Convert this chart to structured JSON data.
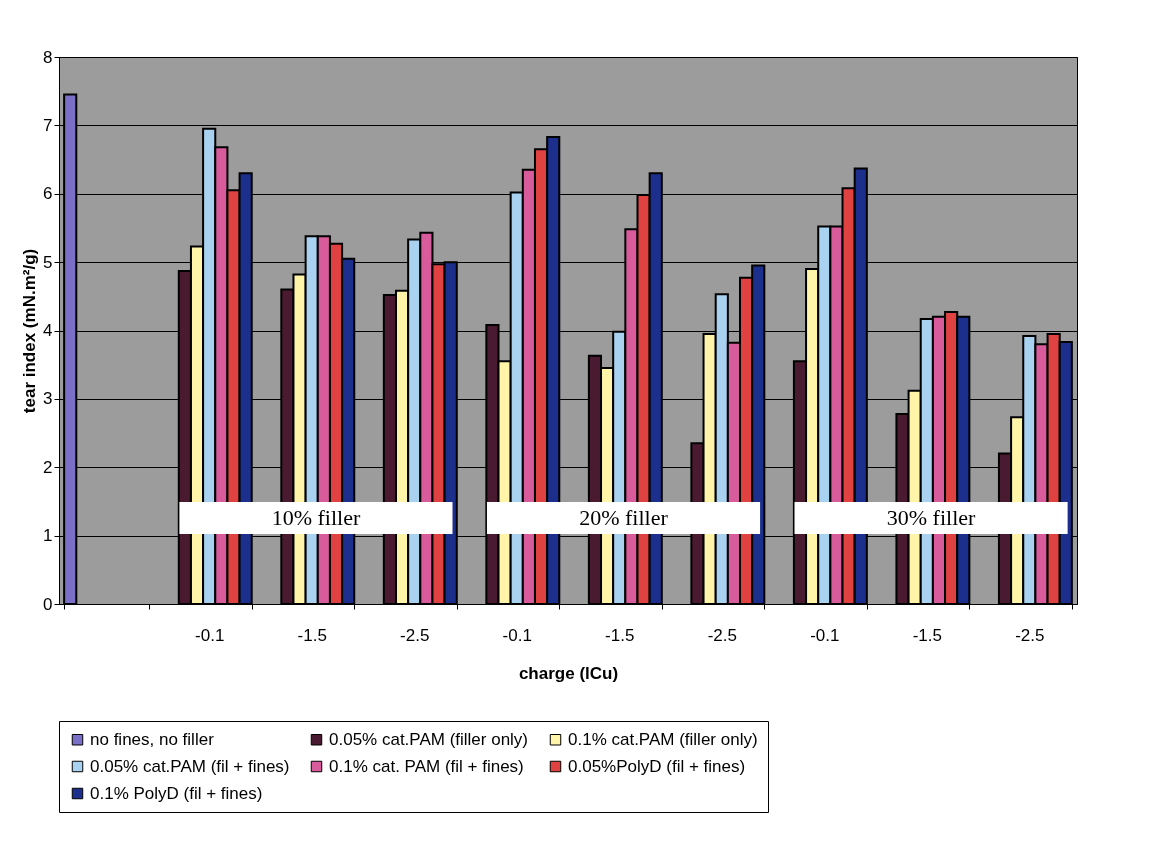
{
  "chart_data": {
    "type": "bar",
    "xlabel": "charge (lCu)",
    "ylabel": "tear index (mN.m²/g)",
    "categories": [
      null,
      "-0.1",
      "-1.5",
      "-2.5",
      "-0.1",
      "-1.5",
      "-2.5",
      "-0.1",
      "-1.5",
      "-2.5"
    ],
    "series": [
      {
        "name": "no fines, no filler",
        "color": "#7b70c8",
        "values": [
          7.45,
          null,
          null,
          null,
          null,
          null,
          null,
          null,
          null,
          null
        ]
      },
      {
        "name": "0.05% cat.PAM (filler only)",
        "color": "#4a1a30",
        "values": [
          null,
          4.87,
          4.6,
          4.52,
          4.08,
          3.63,
          2.35,
          3.55,
          2.78,
          2.2
        ]
      },
      {
        "name": "0.1% cat.PAM (filler only)",
        "color": "#fff4a8",
        "values": [
          null,
          5.23,
          4.82,
          4.58,
          3.55,
          3.45,
          3.95,
          4.9,
          3.12,
          2.73
        ]
      },
      {
        "name": "0.05% cat.PAM (fil + fines)",
        "color": "#a8d2f0",
        "values": [
          null,
          6.95,
          5.38,
          5.33,
          6.02,
          3.98,
          4.53,
          5.52,
          4.17,
          3.92
        ]
      },
      {
        "name": "0.1% cat. PAM (fil + fines)",
        "color": "#d85c9c",
        "values": [
          null,
          6.68,
          5.38,
          5.43,
          6.35,
          5.48,
          3.82,
          5.52,
          4.2,
          3.8
        ]
      },
      {
        "name": "0.05%PolyD (fil + fines)",
        "color": "#e04242",
        "values": [
          null,
          6.05,
          5.27,
          4.97,
          6.65,
          5.98,
          4.77,
          6.08,
          4.27,
          3.95
        ]
      },
      {
        "name": "0.1% PolyD (fil + fines)",
        "color": "#1c2f8c",
        "values": [
          null,
          6.3,
          5.05,
          5.0,
          6.83,
          6.3,
          4.95,
          6.37,
          4.2,
          3.83
        ]
      }
    ],
    "ylim": [
      0,
      8
    ],
    "yticks": [
      0,
      1,
      2,
      3,
      4,
      5,
      6,
      7,
      8
    ],
    "grid": "y",
    "legend": "bottom",
    "annotations": [
      "10% filler",
      "20% filler",
      "30% filler"
    ]
  }
}
